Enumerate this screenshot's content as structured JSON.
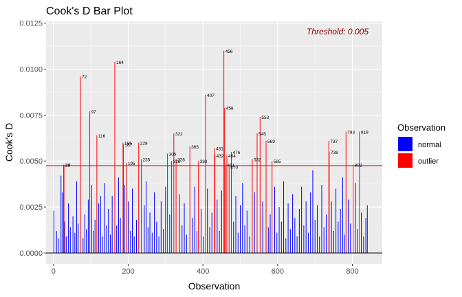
{
  "chart_data": {
    "type": "bar",
    "title": "Cook's D Bar Plot",
    "xlabel": "Observation",
    "ylabel": "Cook's D",
    "xlim": [
      -20,
      880
    ],
    "ylim": [
      -0.0006,
      0.0126
    ],
    "x_ticks": [
      0,
      200,
      400,
      600,
      800
    ],
    "x_tick_labels": [
      "0",
      "200",
      "400",
      "600",
      "800"
    ],
    "y_ticks": [
      0,
      0.0025,
      0.005,
      0.0075,
      0.01,
      0.0125
    ],
    "y_tick_labels": [
      "0.0000",
      "0.0025",
      "0.0050",
      "0.0075",
      "0.0100",
      "0.0125"
    ],
    "grid": true,
    "threshold": 0.00475,
    "threshold_label": "Threshold: 0.005",
    "legend": {
      "title": "Observation",
      "position": "right",
      "entries": [
        {
          "name": "normal",
          "color": "#0000ff"
        },
        {
          "name": "outlier",
          "color": "#ff0000"
        }
      ]
    },
    "outliers": [
      {
        "x": 27,
        "y": 0.0048,
        "label": "27"
      },
      {
        "x": 28,
        "y": 0.0048,
        "label": "28"
      },
      {
        "x": 72,
        "y": 0.0096,
        "label": "72"
      },
      {
        "x": 97,
        "y": 0.0077,
        "label": "97"
      },
      {
        "x": 116,
        "y": 0.0064,
        "label": "116"
      },
      {
        "x": 164,
        "y": 0.0104,
        "label": "164"
      },
      {
        "x": 186,
        "y": 0.006,
        "label": "186"
      },
      {
        "x": 187,
        "y": 0.0059,
        "label": "187"
      },
      {
        "x": 195,
        "y": 0.0049,
        "label": "195"
      },
      {
        "x": 228,
        "y": 0.006,
        "label": "228"
      },
      {
        "x": 235,
        "y": 0.0051,
        "label": "235"
      },
      {
        "x": 305,
        "y": 0.0054,
        "label": "305"
      },
      {
        "x": 316,
        "y": 0.005,
        "label": "316"
      },
      {
        "x": 322,
        "y": 0.0065,
        "label": "322"
      },
      {
        "x": 328,
        "y": 0.0051,
        "label": "328"
      },
      {
        "x": 365,
        "y": 0.0058,
        "label": "365"
      },
      {
        "x": 388,
        "y": 0.005,
        "label": "388"
      },
      {
        "x": 407,
        "y": 0.0086,
        "label": "407"
      },
      {
        "x": 431,
        "y": 0.0057,
        "label": "431"
      },
      {
        "x": 432,
        "y": 0.0053,
        "label": "432"
      },
      {
        "x": 456,
        "y": 0.011,
        "label": "456"
      },
      {
        "x": 458,
        "y": 0.0079,
        "label": "458"
      },
      {
        "x": 461,
        "y": 0.0048,
        "label": "461"
      },
      {
        "x": 464,
        "y": 0.0053,
        "label": "464"
      },
      {
        "x": 470,
        "y": 0.0047,
        "label": "470"
      },
      {
        "x": 476,
        "y": 0.0055,
        "label": "476"
      },
      {
        "x": 532,
        "y": 0.0051,
        "label": "532"
      },
      {
        "x": 545,
        "y": 0.0065,
        "label": "545"
      },
      {
        "x": 553,
        "y": 0.0074,
        "label": "553"
      },
      {
        "x": 569,
        "y": 0.0061,
        "label": "569"
      },
      {
        "x": 585,
        "y": 0.005,
        "label": "585"
      },
      {
        "x": 737,
        "y": 0.0061,
        "label": "737"
      },
      {
        "x": 738,
        "y": 0.0055,
        "label": "738"
      },
      {
        "x": 783,
        "y": 0.0066,
        "label": "783"
      },
      {
        "x": 802,
        "y": 0.0048,
        "label": "802"
      },
      {
        "x": 819,
        "y": 0.0066,
        "label": "819"
      }
    ],
    "normal": [
      {
        "x": 1,
        "y": 0.0023
      },
      {
        "x": 8,
        "y": 0.0012
      },
      {
        "x": 13,
        "y": 0.0008
      },
      {
        "x": 20,
        "y": 0.0042
      },
      {
        "x": 24,
        "y": 0.0033
      },
      {
        "x": 30,
        "y": 0.0017
      },
      {
        "x": 34,
        "y": 0.0009
      },
      {
        "x": 40,
        "y": 0.0027
      },
      {
        "x": 45,
        "y": 0.0014
      },
      {
        "x": 52,
        "y": 0.002
      },
      {
        "x": 57,
        "y": 0.0011
      },
      {
        "x": 62,
        "y": 0.0039
      },
      {
        "x": 66,
        "y": 0.0016
      },
      {
        "x": 79,
        "y": 0.0008
      },
      {
        "x": 84,
        "y": 0.0021
      },
      {
        "x": 88,
        "y": 0.0013
      },
      {
        "x": 93,
        "y": 0.0029
      },
      {
        "x": 102,
        "y": 0.0037
      },
      {
        "x": 107,
        "y": 0.0012
      },
      {
        "x": 111,
        "y": 0.0018
      },
      {
        "x": 121,
        "y": 0.0027
      },
      {
        "x": 126,
        "y": 0.0031
      },
      {
        "x": 131,
        "y": 0.0009
      },
      {
        "x": 137,
        "y": 0.0038
      },
      {
        "x": 142,
        "y": 0.0015
      },
      {
        "x": 147,
        "y": 0.0024
      },
      {
        "x": 152,
        "y": 0.001
      },
      {
        "x": 157,
        "y": 0.0031
      },
      {
        "x": 169,
        "y": 0.0015
      },
      {
        "x": 174,
        "y": 0.0041
      },
      {
        "x": 179,
        "y": 0.0019
      },
      {
        "x": 190,
        "y": 0.0037
      },
      {
        "x": 200,
        "y": 0.0028
      },
      {
        "x": 206,
        "y": 0.0012
      },
      {
        "x": 211,
        "y": 0.0035
      },
      {
        "x": 216,
        "y": 0.0009
      },
      {
        "x": 222,
        "y": 0.0018
      },
      {
        "x": 243,
        "y": 0.0026
      },
      {
        "x": 248,
        "y": 0.0039
      },
      {
        "x": 253,
        "y": 0.0014
      },
      {
        "x": 258,
        "y": 0.0022
      },
      {
        "x": 264,
        "y": 0.0011
      },
      {
        "x": 270,
        "y": 0.0033
      },
      {
        "x": 276,
        "y": 0.0017
      },
      {
        "x": 282,
        "y": 0.0009
      },
      {
        "x": 288,
        "y": 0.0028
      },
      {
        "x": 294,
        "y": 0.0013
      },
      {
        "x": 300,
        "y": 0.0036
      },
      {
        "x": 311,
        "y": 0.0021
      },
      {
        "x": 337,
        "y": 0.0032
      },
      {
        "x": 344,
        "y": 0.0015
      },
      {
        "x": 350,
        "y": 0.0027
      },
      {
        "x": 356,
        "y": 0.001
      },
      {
        "x": 372,
        "y": 0.0019
      },
      {
        "x": 378,
        "y": 0.0036
      },
      {
        "x": 384,
        "y": 0.0012
      },
      {
        "x": 395,
        "y": 0.0024
      },
      {
        "x": 401,
        "y": 0.0009
      },
      {
        "x": 412,
        "y": 0.0035
      },
      {
        "x": 418,
        "y": 0.0014
      },
      {
        "x": 424,
        "y": 0.0022
      },
      {
        "x": 438,
        "y": 0.0029
      },
      {
        "x": 444,
        "y": 0.0012
      },
      {
        "x": 450,
        "y": 0.0034
      },
      {
        "x": 482,
        "y": 0.0017
      },
      {
        "x": 488,
        "y": 0.0031
      },
      {
        "x": 494,
        "y": 0.0011
      },
      {
        "x": 500,
        "y": 0.0026
      },
      {
        "x": 506,
        "y": 0.0038
      },
      {
        "x": 512,
        "y": 0.0015
      },
      {
        "x": 518,
        "y": 0.0023
      },
      {
        "x": 525,
        "y": 0.0009
      },
      {
        "x": 538,
        "y": 0.0033
      },
      {
        "x": 560,
        "y": 0.0028
      },
      {
        "x": 575,
        "y": 0.0014
      },
      {
        "x": 580,
        "y": 0.0021
      },
      {
        "x": 592,
        "y": 0.0036
      },
      {
        "x": 598,
        "y": 0.0011
      },
      {
        "x": 604,
        "y": 0.0025
      },
      {
        "x": 610,
        "y": 0.0017
      },
      {
        "x": 616,
        "y": 0.0039
      },
      {
        "x": 622,
        "y": 0.0008
      },
      {
        "x": 628,
        "y": 0.0027
      },
      {
        "x": 634,
        "y": 0.0013
      },
      {
        "x": 640,
        "y": 0.0032
      },
      {
        "x": 646,
        "y": 0.0019
      },
      {
        "x": 652,
        "y": 0.0009
      },
      {
        "x": 658,
        "y": 0.0024
      },
      {
        "x": 664,
        "y": 0.0036
      },
      {
        "x": 670,
        "y": 0.0015
      },
      {
        "x": 676,
        "y": 0.0028
      },
      {
        "x": 682,
        "y": 0.0011
      },
      {
        "x": 688,
        "y": 0.0033
      },
      {
        "x": 694,
        "y": 0.0045
      },
      {
        "x": 700,
        "y": 0.0018
      },
      {
        "x": 706,
        "y": 0.0026
      },
      {
        "x": 712,
        "y": 0.0009
      },
      {
        "x": 718,
        "y": 0.0037
      },
      {
        "x": 724,
        "y": 0.0014
      },
      {
        "x": 730,
        "y": 0.0021
      },
      {
        "x": 744,
        "y": 0.0028
      },
      {
        "x": 750,
        "y": 0.0012
      },
      {
        "x": 756,
        "y": 0.0035
      },
      {
        "x": 762,
        "y": 0.0017
      },
      {
        "x": 768,
        "y": 0.0024
      },
      {
        "x": 774,
        "y": 0.0041
      },
      {
        "x": 779,
        "y": 0.001
      },
      {
        "x": 789,
        "y": 0.0029
      },
      {
        "x": 795,
        "y": 0.0016
      },
      {
        "x": 808,
        "y": 0.0038
      },
      {
        "x": 814,
        "y": 0.0013
      },
      {
        "x": 824,
        "y": 0.0022
      },
      {
        "x": 830,
        "y": 0.0009
      },
      {
        "x": 836,
        "y": 0.0019
      },
      {
        "x": 840,
        "y": 0.0026
      }
    ]
  }
}
